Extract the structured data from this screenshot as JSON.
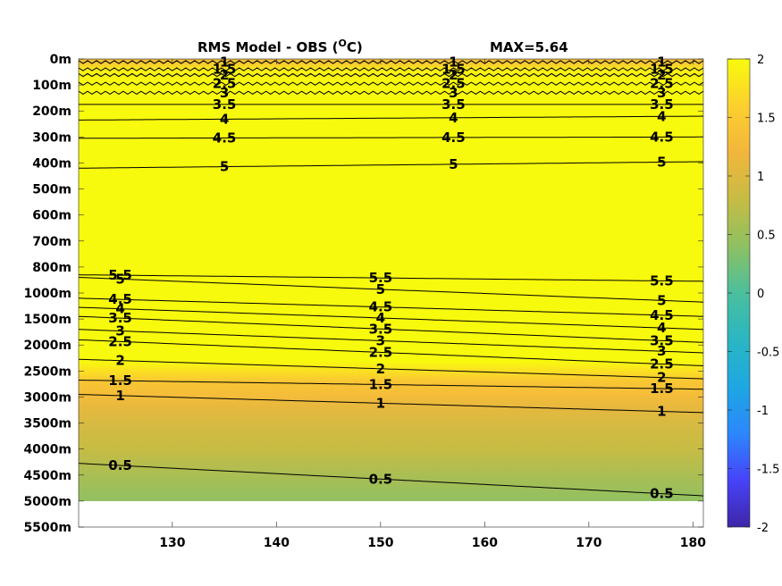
{
  "chart_data": {
    "type": "heatmap",
    "title": "RMS Model - OBS (",
    "title_unit": "O",
    "title_tail": "C)",
    "max_label": "MAX=5.64",
    "xlabel": "",
    "ylabel": "",
    "xlim": [
      121,
      181
    ],
    "x_ticks": [
      130,
      140,
      150,
      160,
      170,
      180
    ],
    "y_tick_labels": [
      "0m",
      "100m",
      "200m",
      "300m",
      "400m",
      "500m",
      "600m",
      "700m",
      "800m",
      "1000m",
      "1500m",
      "2000m",
      "2500m",
      "3000m",
      "3500m",
      "4000m",
      "4500m",
      "5000m",
      "5500m"
    ],
    "data_bottom_label": "5000m",
    "colorbar": {
      "min": -2,
      "max": 2,
      "ticks": [
        2,
        1.5,
        1,
        0.5,
        0,
        -0.5,
        -1,
        -1.5,
        -2
      ],
      "tick_labels": [
        "2",
        "1.5",
        "1",
        "0.5",
        "0",
        "-0.5",
        "-1",
        "-1.5",
        "-2"
      ],
      "colormap": "parula",
      "colors": [
        "#3e26a8",
        "#4743f8",
        "#2c87fc",
        "#1ea7e2",
        "#2ab6c2",
        "#4bbf9d",
        "#8ec062",
        "#c6bc44",
        "#f2b63c",
        "#fcd02e",
        "#f8fa0d"
      ]
    },
    "contours": [
      {
        "level": 1,
        "label": "1",
        "depth_index": [
          0.12,
          0.12
        ]
      },
      {
        "level": 1.5,
        "label": "1.5",
        "depth_index": [
          0.4,
          0.4
        ]
      },
      {
        "level": 2,
        "label": "2",
        "depth_index": [
          0.62,
          0.62
        ]
      },
      {
        "level": 2.5,
        "label": "2.5",
        "depth_index": [
          0.95,
          0.95
        ]
      },
      {
        "level": 3,
        "label": "3",
        "depth_index": [
          1.3,
          1.3
        ]
      },
      {
        "level": 3.5,
        "label": "3.5",
        "depth_index": [
          1.75,
          1.75
        ]
      },
      {
        "level": 4,
        "label": "4",
        "depth_index": [
          2.35,
          2.2
        ]
      },
      {
        "level": 4.5,
        "label": "4.5",
        "depth_index": [
          3.05,
          3.0
        ]
      },
      {
        "level": 5,
        "label": "5",
        "depth_index": [
          4.2,
          3.95
        ]
      },
      {
        "level": 5.5,
        "label": "5.5",
        "depth_index": [
          8.3,
          8.55
        ]
      },
      {
        "level": 5,
        "label": "5",
        "depth_index": [
          8.4,
          9.35
        ]
      },
      {
        "level": 4.5,
        "label": "4.5",
        "depth_index": [
          9.2,
          9.9
        ]
      },
      {
        "level": 4,
        "label": "4",
        "depth_index": [
          9.55,
          10.4
        ]
      },
      {
        "level": 3.5,
        "label": "3.5",
        "depth_index": [
          9.9,
          10.9
        ]
      },
      {
        "level": 3,
        "label": "3",
        "depth_index": [
          10.4,
          11.3
        ]
      },
      {
        "level": 2.5,
        "label": "2.5",
        "depth_index": [
          10.8,
          11.8
        ]
      },
      {
        "level": 2,
        "label": "2",
        "depth_index": [
          11.55,
          12.3
        ]
      },
      {
        "level": 1.5,
        "label": "1.5",
        "depth_index": [
          12.35,
          12.7
        ]
      },
      {
        "level": 1,
        "label": "1",
        "depth_index": [
          12.9,
          13.6
        ]
      },
      {
        "level": 0.5,
        "label": "0.5",
        "depth_index": [
          15.55,
          16.8
        ]
      }
    ],
    "field_profile": [
      {
        "depth_index": 0.0,
        "value": 1.1
      },
      {
        "depth_index": 0.15,
        "value": 1.45
      },
      {
        "depth_index": 0.45,
        "value": 1.9
      },
      {
        "depth_index": 1.0,
        "value": 2.0
      },
      {
        "depth_index": 11.6,
        "value": 2.0
      },
      {
        "depth_index": 12.0,
        "value": 1.75
      },
      {
        "depth_index": 12.4,
        "value": 1.45
      },
      {
        "depth_index": 12.9,
        "value": 1.3
      },
      {
        "depth_index": 13.4,
        "value": 1.1
      },
      {
        "depth_index": 14.0,
        "value": 0.95
      },
      {
        "depth_index": 15.0,
        "value": 0.8
      },
      {
        "depth_index": 16.0,
        "value": 0.6
      },
      {
        "depth_index": 17.0,
        "value": 0.42
      }
    ]
  }
}
